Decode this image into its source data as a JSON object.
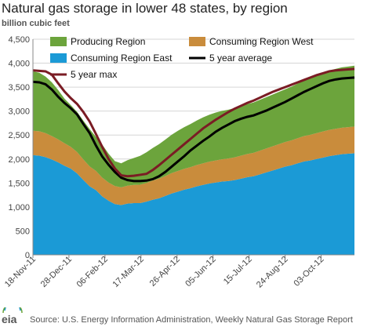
{
  "title": "Natural gas storage in lower 48 states, by region",
  "units": "billion cubic feet",
  "source": "Source: U.S. Energy Information Administration, Weekly Natural Gas Storage Report",
  "logo_text": "eia",
  "colors": {
    "producing": "#6ca43c",
    "consuming_west": "#c98c3c",
    "consuming_east": "#1b9ad6",
    "five_year_avg": "#000000",
    "five_year_max": "#7a1c24",
    "grid": "#d6d6d6"
  },
  "chart_data": {
    "type": "area",
    "ylim": [
      0,
      4500
    ],
    "yticks": [
      0,
      500,
      1000,
      1500,
      2000,
      2500,
      3000,
      3500,
      4000,
      4500
    ],
    "ytick_labels": [
      "0",
      "500",
      "1,000",
      "1,500",
      "2,000",
      "2,500",
      "3,000",
      "3,500",
      "4,000",
      "4,500"
    ],
    "xtick_labels": [
      "18-Nov-11",
      "28-Dec-11",
      "06-Feb-12",
      "17-Mar-12",
      "26-Apr-12",
      "05-Jun-12",
      "15-Jul-12",
      "24-Aug-12",
      "03-Oct-12"
    ],
    "xtick_weeks": [
      0,
      5.71,
      11.43,
      17.14,
      22.86,
      28.57,
      34.29,
      40,
      45.71
    ],
    "x_weeks": [
      0,
      1,
      2,
      3,
      4,
      5,
      6,
      7,
      8,
      9,
      10,
      11,
      12,
      13,
      14,
      15,
      16,
      17,
      18,
      19,
      20,
      21,
      22,
      23,
      24,
      25,
      26,
      27,
      28,
      29,
      30,
      31,
      32,
      33,
      34,
      35,
      36,
      37,
      38,
      39,
      40,
      41,
      42,
      43,
      44,
      45,
      46,
      47,
      48,
      49,
      50,
      51
    ],
    "legend": [
      "Producing Region",
      "Consuming Region West",
      "Consuming Region East",
      "5 year average",
      "5 year max"
    ],
    "legend_position": "top",
    "series": [
      {
        "name": "Consuming Region East",
        "kind": "stack",
        "values": [
          2080,
          2070,
          2040,
          1990,
          1930,
          1860,
          1800,
          1700,
          1560,
          1430,
          1350,
          1220,
          1130,
          1060,
          1040,
          1070,
          1080,
          1080,
          1110,
          1150,
          1180,
          1230,
          1280,
          1320,
          1360,
          1390,
          1430,
          1460,
          1490,
          1510,
          1530,
          1540,
          1560,
          1590,
          1620,
          1640,
          1680,
          1720,
          1760,
          1800,
          1840,
          1870,
          1910,
          1950,
          1970,
          2000,
          2030,
          2060,
          2080,
          2100,
          2110,
          2120
        ]
      },
      {
        "name": "Consuming Region West",
        "kind": "stack",
        "values": [
          510,
          510,
          500,
          490,
          480,
          470,
          455,
          445,
          430,
          415,
          400,
          390,
          380,
          375,
          370,
          375,
          380,
          385,
          390,
          400,
          410,
          415,
          425,
          430,
          435,
          440,
          445,
          450,
          455,
          460,
          465,
          470,
          475,
          480,
          485,
          490,
          495,
          500,
          505,
          510,
          515,
          520,
          525,
          530,
          535,
          540,
          545,
          548,
          550,
          552,
          555,
          557
        ]
      },
      {
        "name": "Producing Region",
        "kind": "stack",
        "values": [
          1240,
          1220,
          1180,
          1120,
          1030,
          930,
          870,
          840,
          810,
          780,
          710,
          690,
          600,
          520,
          500,
          530,
          560,
          600,
          640,
          680,
          720,
          760,
          800,
          840,
          870,
          900,
          930,
          960,
          980,
          1000,
          1010,
          1020,
          1030,
          1030,
          1040,
          1050,
          1060,
          1070,
          1080,
          1090,
          1100,
          1120,
          1140,
          1160,
          1180,
          1200,
          1220,
          1240,
          1250,
          1260,
          1265,
          1270
        ]
      },
      {
        "name": "5 year average",
        "kind": "line",
        "values": [
          3610,
          3600,
          3560,
          3450,
          3300,
          3170,
          3060,
          2930,
          2730,
          2540,
          2280,
          2050,
          1880,
          1730,
          1610,
          1560,
          1540,
          1540,
          1550,
          1580,
          1640,
          1730,
          1840,
          1950,
          2060,
          2180,
          2280,
          2380,
          2470,
          2570,
          2650,
          2720,
          2790,
          2840,
          2880,
          2910,
          2960,
          3010,
          3070,
          3130,
          3190,
          3260,
          3330,
          3400,
          3460,
          3520,
          3580,
          3630,
          3660,
          3680,
          3690,
          3700
        ]
      },
      {
        "name": "5 year max",
        "kind": "line",
        "values": [
          3850,
          3840,
          3830,
          3760,
          3580,
          3410,
          3270,
          3150,
          2980,
          2780,
          2520,
          2250,
          2000,
          1800,
          1660,
          1640,
          1650,
          1670,
          1690,
          1770,
          1870,
          1980,
          2090,
          2200,
          2310,
          2420,
          2530,
          2640,
          2730,
          2820,
          2900,
          2980,
          3050,
          3110,
          3170,
          3220,
          3280,
          3340,
          3400,
          3450,
          3500,
          3550,
          3600,
          3650,
          3700,
          3750,
          3790,
          3830,
          3850,
          3860,
          3870,
          3880
        ]
      }
    ]
  }
}
